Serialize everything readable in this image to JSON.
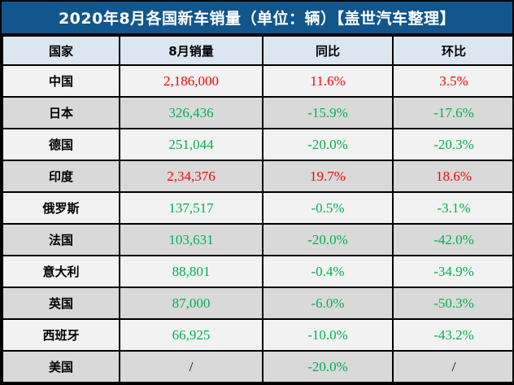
{
  "chart_data": {
    "type": "table",
    "title": "2020年8月各国新车销量（单位：辆）【盖世汽车整理】",
    "columns": [
      "国家",
      "8月销量",
      "同比",
      "环比"
    ],
    "rows": [
      [
        "中国",
        "2,186,000",
        "11.6%",
        "3.5%"
      ],
      [
        "日本",
        "326,436",
        "-15.9%",
        "-17.6%"
      ],
      [
        "德国",
        "251,044",
        "-20.0%",
        "-20.3%"
      ],
      [
        "印度",
        "2,34,376",
        "19.7%",
        "18.6%"
      ],
      [
        "俄罗斯",
        "137,517",
        "-0.5%",
        "-3.1%"
      ],
      [
        "法国",
        "103,631",
        "-20.0%",
        "-42.0%"
      ],
      [
        "意大利",
        "88,801",
        "-0.4%",
        "-34.9%"
      ],
      [
        "英国",
        "87,000",
        "-6.0%",
        "-50.3%"
      ],
      [
        "西班牙",
        "66,925",
        "-10.0%",
        "-43.2%"
      ],
      [
        "美国",
        "/",
        "-20.0%",
        "/"
      ]
    ]
  },
  "colors": {
    "title_bg": "#11568C",
    "title_text": "#FFFFFF",
    "header_bg": "#DCE6F1",
    "row_light": "#F2F2F2",
    "row_dark": "#D9D9D9",
    "border": "#000000",
    "positive": "#FF0000",
    "negative": "#00B050",
    "neutral": "#000000"
  }
}
